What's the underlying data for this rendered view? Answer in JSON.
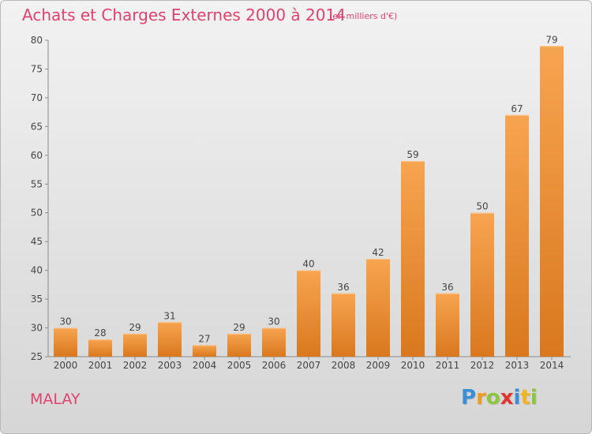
{
  "header": {
    "title": "Achats et Charges Externes 2000 à 2014",
    "subtitle": "(en milliers d'€)"
  },
  "footer": {
    "location": "MALAY",
    "brand_logo": {
      "letters": [
        "P",
        "r",
        "o",
        "x",
        "i",
        "t",
        "i"
      ],
      "colors": [
        "#3a8fd6",
        "#f29a1f",
        "#8cc63e",
        "#e2342f",
        "#3a8fd6",
        "#f2b51f",
        "#8cc63e"
      ]
    }
  },
  "colors": {
    "accent": "#e0426f",
    "bar_top": "#f7a450",
    "bar_bottom": "#d9781e"
  },
  "chart_data": {
    "type": "bar",
    "categories": [
      "2000",
      "2001",
      "2002",
      "2003",
      "2004",
      "2005",
      "2006",
      "2007",
      "2008",
      "2009",
      "2010",
      "2011",
      "2012",
      "2013",
      "2014"
    ],
    "values": [
      30,
      28,
      29,
      31,
      27,
      29,
      30,
      40,
      36,
      42,
      59,
      36,
      50,
      67,
      79
    ],
    "ylim": [
      25,
      80
    ],
    "yticks": [
      25,
      30,
      35,
      40,
      45,
      50,
      55,
      60,
      65,
      70,
      75,
      80
    ],
    "grid": false,
    "data_labels": true
  }
}
